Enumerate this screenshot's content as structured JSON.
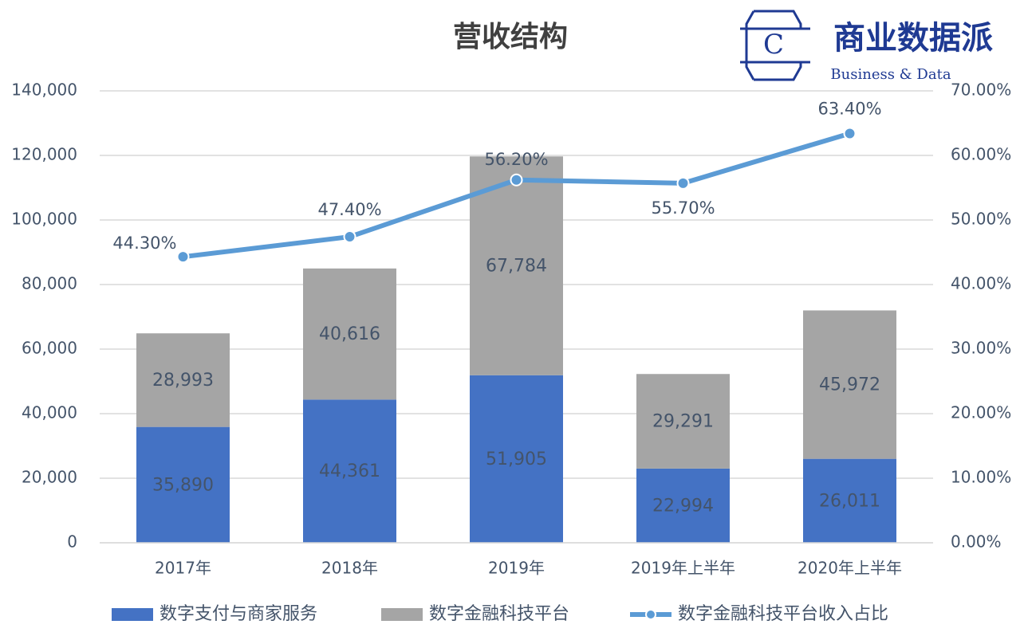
{
  "chart_data": {
    "type": "bar_line",
    "title": "营收结构",
    "categories": [
      "2017年",
      "2018年",
      "2019年",
      "2019年上半年",
      "2020年上半年"
    ],
    "series": [
      {
        "name": "数字支付与商家服务",
        "color": "#4472c4",
        "values": [
          35890,
          44361,
          51905,
          22994,
          26011
        ],
        "value_labels": [
          "35,890",
          "44,361",
          "51,905",
          "22,994",
          "26,011"
        ]
      },
      {
        "name": "数字金融科技平台",
        "color": "#a5a5a5",
        "values": [
          28993,
          40616,
          67784,
          29291,
          45972
        ],
        "value_labels": [
          "28,993",
          "40,616",
          "67,784",
          "29,291",
          "45,972"
        ]
      },
      {
        "name": "数字金融科技平台收入占比",
        "color": "#5b9bd5",
        "axis": "y2",
        "type": "line",
        "values": [
          44.3,
          47.4,
          56.2,
          55.7,
          63.4
        ],
        "value_labels": [
          "44.30%",
          "47.40%",
          "56.20%",
          "55.70%",
          "63.40%"
        ]
      }
    ],
    "ylim": [
      0,
      140000
    ],
    "yticks": [
      0,
      {
        "value": 20000,
        "label": "20,000"
      },
      {
        "value": 40000,
        "label": "40,000"
      },
      {
        "value": 60000,
        "label": "60,000"
      },
      {
        "value": 80000,
        "label": "80,000"
      },
      {
        "value": 100000,
        "label": "100,000"
      },
      {
        "value": 120000,
        "label": "120,000"
      },
      {
        "value": 140000,
        "label": "140,000"
      }
    ],
    "y2lim": [
      0,
      70
    ],
    "y2ticks": [
      {
        "value": 0,
        "label": "0.00%"
      },
      {
        "value": 10,
        "label": "10.00%"
      },
      {
        "value": 20,
        "label": "20.00%"
      },
      {
        "value": 30,
        "label": "30.00%"
      },
      {
        "value": 40,
        "label": "40.00%"
      },
      {
        "value": 50,
        "label": "50.00%"
      },
      {
        "value": 60,
        "label": "60.00%"
      },
      {
        "value": 70,
        "label": "70.00%"
      }
    ],
    "grid": true,
    "legend": "bottom"
  },
  "logo": {
    "icon": "C",
    "title": "商业数据派",
    "subtitle": "Business & Data"
  }
}
